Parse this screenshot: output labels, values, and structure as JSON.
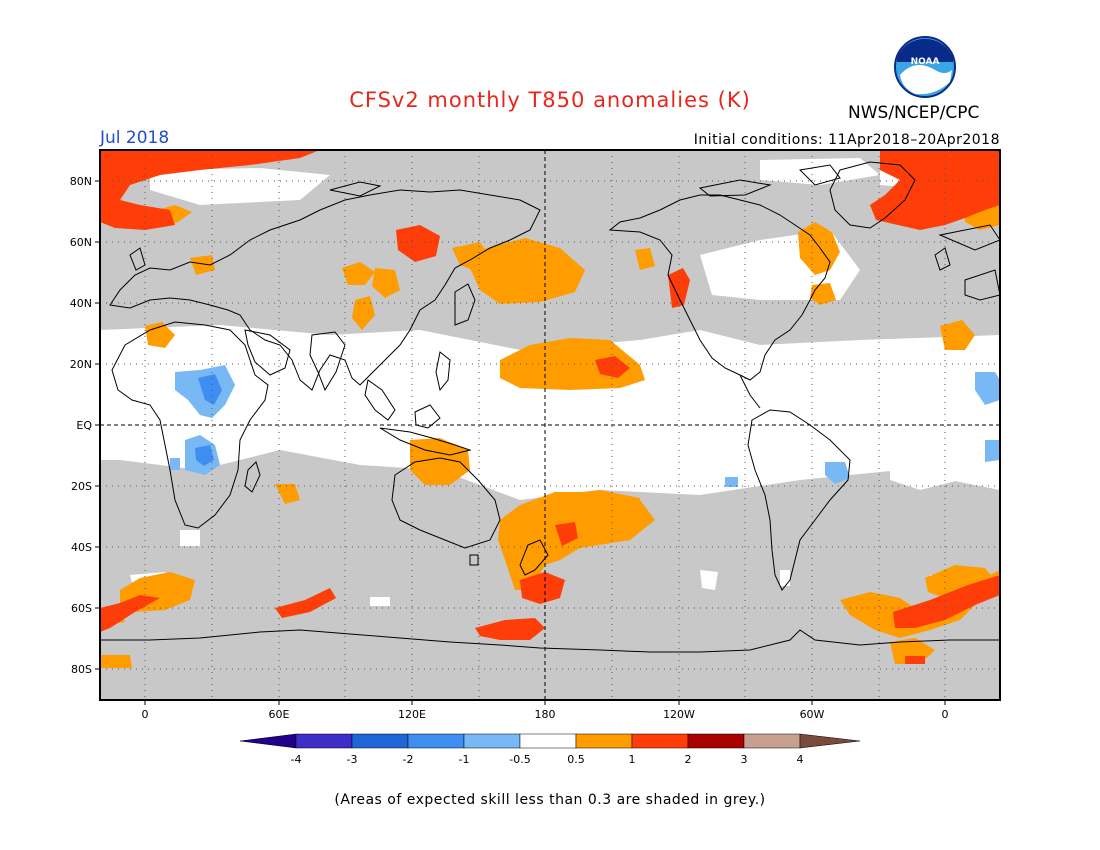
{
  "header": {
    "title": "CFSv2 monthly T850 anomalies (K)",
    "month": "Jul 2018",
    "agency": "NWS/NCEP/CPC",
    "initial_conditions": "Initial conditions: 11Apr2018–20Apr2018",
    "logo_text": "NOAA"
  },
  "map": {
    "lat_labels": [
      "80N",
      "60N",
      "40N",
      "20N",
      "EQ",
      "20S",
      "40S",
      "60S",
      "80S"
    ],
    "lon_labels": [
      "0",
      "60E",
      "120E",
      "180",
      "120W",
      "60W",
      "0"
    ],
    "lon_range": [
      -20,
      380
    ],
    "lat_range": [
      -90,
      90
    ]
  },
  "colorbar": {
    "ticks": [
      "-4",
      "-3",
      "-2",
      "-1",
      "-0.5",
      "0.5",
      "1",
      "2",
      "3",
      "4"
    ],
    "colors": {
      "below_-4": "#21008c",
      "-4_-3": "#3f2dc8",
      "-3_-2": "#1f66d6",
      "-2_-1": "#3d8ef0",
      "-1_-0.5": "#78b8f5",
      "-0.5_0.5": "#ffffff",
      "0.5_1": "#ff9c00",
      "1_2": "#ff3d08",
      "2_3": "#a90000",
      "3_4": "#c8a090",
      "above_4": "#7a4a3c",
      "low_skill": "#c8c8c8"
    }
  },
  "footnote": "(Areas of expected skill less than 0.3 are shaded in grey.)"
}
